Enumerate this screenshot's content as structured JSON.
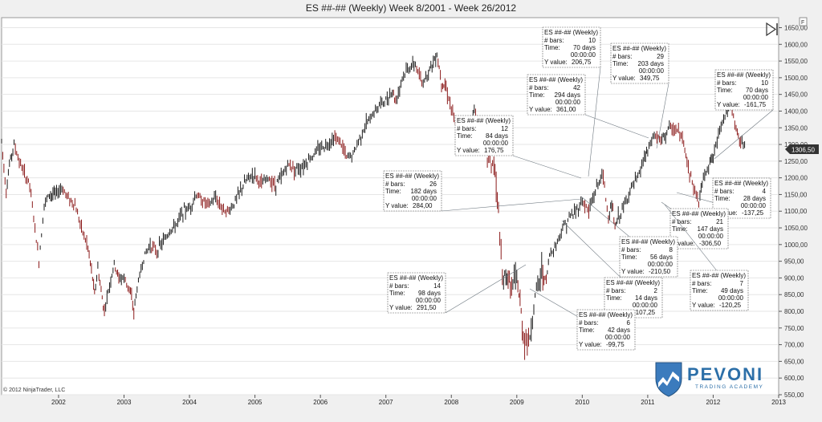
{
  "title": "ES ##-## (Weekly)  Week 8/2001 - Week 26/2012",
  "copyright": "© 2012 NinjaTrader, LLC",
  "current_price": "1306,50",
  "brand": {
    "name": "PEVONI",
    "tagline": "TRADING ACADEMY"
  },
  "colors": {
    "up": "#1a1a1a",
    "down": "#8b1a1a",
    "line": "#6e7880",
    "accent": "#2c6fa8"
  },
  "chart_data": {
    "type": "line",
    "x_ticks": [
      "2002",
      "2003",
      "2004",
      "2005",
      "2006",
      "2007",
      "2008",
      "2009",
      "2010",
      "2011",
      "2012",
      "2013"
    ],
    "y_ticks": [
      "1650,00",
      "1600,00",
      "1550,00",
      "1500,00",
      "1450,00",
      "1400,00",
      "1350,00",
      "1300,00",
      "1250,00",
      "1200,00",
      "1150,00",
      "1100,00",
      "1050,00",
      "1000,00",
      "950,00",
      "900,00",
      "850,00",
      "800,00",
      "750,00",
      "700,00",
      "650,00",
      "600,00",
      "550,00"
    ],
    "ylim": [
      550,
      1680
    ],
    "xlim": [
      2001.13,
      2013.0
    ],
    "grid": true,
    "series": [
      {
        "x": [
          2001.13,
          2001.2,
          2001.25,
          2001.32,
          2001.4,
          2001.48,
          2001.56,
          2001.62,
          2001.7,
          2001.78,
          2001.86,
          2001.95,
          2002.05,
          2002.15,
          2002.25,
          2002.35,
          2002.45,
          2002.52,
          2002.55,
          2002.6,
          2002.65,
          2002.7,
          2002.78,
          2002.85,
          2002.92,
          2003.0,
          2003.08,
          2003.15,
          2003.2,
          2003.3,
          2003.4,
          2003.5,
          2003.6,
          2003.7,
          2003.8,
          2003.9,
          2004.0,
          2004.1,
          2004.2,
          2004.3,
          2004.4,
          2004.5,
          2004.6,
          2004.7,
          2004.8,
          2004.9,
          2005.0,
          2005.1,
          2005.2,
          2005.3,
          2005.4,
          2005.5,
          2005.6,
          2005.7,
          2005.8,
          2005.9,
          2006.0,
          2006.1,
          2006.2,
          2006.3,
          2006.4,
          2006.5,
          2006.6,
          2006.7,
          2006.8,
          2006.9,
          2007.0,
          2007.1,
          2007.15,
          2007.25,
          2007.35,
          2007.45,
          2007.55,
          2007.65,
          2007.78,
          2007.85,
          2007.92,
          2008.0,
          2008.08,
          2008.2,
          2008.35,
          2008.45,
          2008.55,
          2008.65,
          2008.72,
          2008.78,
          2008.85,
          2008.92,
          2009.0,
          2009.05,
          2009.1,
          2009.18,
          2009.28,
          2009.38,
          2009.45,
          2009.5,
          2009.6,
          2009.7,
          2009.8,
          2009.9,
          2010.0,
          2010.1,
          2010.2,
          2010.3,
          2010.32,
          2010.4,
          2010.45,
          2010.5,
          2010.55,
          2010.65,
          2010.75,
          2010.85,
          2010.95,
          2011.0,
          2011.1,
          2011.2,
          2011.33,
          2011.45,
          2011.55,
          2011.6,
          2011.7,
          2011.78,
          2011.85,
          2011.95,
          2012.0,
          2012.1,
          2012.2,
          2012.27,
          2012.35,
          2012.42,
          2012.48
        ],
        "y": [
          1310,
          1160,
          1240,
          1300,
          1250,
          1210,
          1180,
          1080,
          950,
          1120,
          1150,
          1150,
          1170,
          1140,
          1120,
          1050,
          990,
          900,
          850,
          930,
          860,
          800,
          880,
          940,
          900,
          900,
          870,
          800,
          870,
          960,
          1000,
          980,
          1010,
          1040,
          1060,
          1100,
          1110,
          1150,
          1130,
          1120,
          1140,
          1110,
          1100,
          1130,
          1170,
          1200,
          1210,
          1180,
          1200,
          1180,
          1200,
          1240,
          1230,
          1230,
          1250,
          1270,
          1290,
          1300,
          1320,
          1310,
          1260,
          1270,
          1320,
          1360,
          1390,
          1420,
          1430,
          1460,
          1430,
          1500,
          1530,
          1540,
          1480,
          1520,
          1570,
          1490,
          1470,
          1410,
          1340,
          1310,
          1400,
          1350,
          1260,
          1240,
          1100,
          880,
          910,
          870,
          900,
          820,
          730,
          700,
          840,
          920,
          890,
          970,
          1000,
          1050,
          1080,
          1100,
          1130,
          1100,
          1160,
          1210,
          1200,
          1080,
          1120,
          1050,
          1080,
          1120,
          1170,
          1200,
          1260,
          1280,
          1330,
          1310,
          1350,
          1340,
          1310,
          1250,
          1170,
          1130,
          1200,
          1250,
          1260,
          1350,
          1400,
          1410,
          1350,
          1300,
          1306
        ]
      }
    ],
    "annotations": [
      {
        "title": "ES ##-## (Weekly)",
        "bars": "10",
        "time": "70 days",
        "clock": "00:00:00",
        "y_value": "206,75"
      },
      {
        "title": "ES ##-## (Weekly)",
        "bars": "29",
        "time": "203 days",
        "clock": "00:00:00",
        "y_value": "349,75"
      },
      {
        "title": "ES ##-## (Weekly)",
        "bars": "42",
        "time": "294 days",
        "clock": "00:00:00",
        "y_value": "361,00"
      },
      {
        "title": "ES ##-## (Weekly)",
        "bars": "10",
        "time": "70 days",
        "clock": "00:00:00",
        "y_value": "-161,75"
      },
      {
        "title": "ES ##-## (Weekly)",
        "bars": "12",
        "time": "84 days",
        "clock": "00:00:00",
        "y_value": "176,75"
      },
      {
        "title": "ES ##-## (Weekly)",
        "bars": "26",
        "time": "182 days",
        "clock": "00:00:00",
        "y_value": "284,00"
      },
      {
        "title": "ES ##-## (Weekly)",
        "bars": "4",
        "time": "28 days",
        "clock": "00:00:00",
        "y_value": "-137,25"
      },
      {
        "title": "ES ##-## (Weekly)",
        "bars": "21",
        "time": "147 days",
        "clock": "00:00:00",
        "y_value": "-306,50"
      },
      {
        "title": "ES ##-## (Weekly)",
        "bars": "8",
        "time": "56 days",
        "clock": "00:00:00",
        "y_value": "-210,50"
      },
      {
        "title": "ES ##-## (Weekly)",
        "bars": "7",
        "time": "49 days",
        "clock": "00:00:00",
        "y_value": "-120,25"
      },
      {
        "title": "ES ##-## (Weekly)",
        "bars": "14",
        "time": "98 days",
        "clock": "00:00:00",
        "y_value": "291,50"
      },
      {
        "title": "ES ##-## (Weekly)",
        "bars": "2",
        "time": "14 days",
        "clock": "00:00:00",
        "y_value": "-107,25"
      },
      {
        "title": "ES ##-## (Weekly)",
        "bars": "6",
        "time": "42 days",
        "clock": "00:00:00",
        "y_value": "-99,75"
      }
    ],
    "labels": {
      "bars": "# bars:",
      "time": "Time:",
      "y_value": "Y value:"
    }
  }
}
